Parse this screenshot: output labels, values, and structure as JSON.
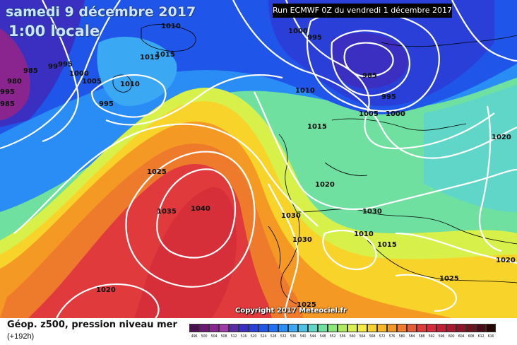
{
  "header": {
    "date_title": "samedi 9 décembre 2017",
    "local_time": "1:00 locale",
    "run_info": "Run ECMWF 0Z du vendredi 1 décembre 2017"
  },
  "footer": {
    "parameter": "Géop. z500, pression niveau mer",
    "lead_time": "(+192h)",
    "copyright": "Copyright 2017 Meteociel.fr"
  },
  "colorscale": {
    "ticks": [
      "496",
      "500",
      "504",
      "508",
      "512",
      "516",
      "520",
      "524",
      "528",
      "532",
      "536",
      "540",
      "544",
      "548",
      "552",
      "556",
      "560",
      "564",
      "568",
      "572",
      "576",
      "580",
      "584",
      "588",
      "592",
      "596",
      "600",
      "604",
      "608",
      "612",
      "616"
    ],
    "colors": [
      "#4a0f4f",
      "#6b1a72",
      "#8a2590",
      "#a03aa8",
      "#5a2aa8",
      "#3a2fc0",
      "#2a3fd8",
      "#1f55e8",
      "#1e6ff2",
      "#2a8cf5",
      "#3aa8f2",
      "#4fc2e8",
      "#5fd6c8",
      "#6fe0a0",
      "#8ae67a",
      "#b0ec5a",
      "#d8f04a",
      "#f4ec3c",
      "#f8d42a",
      "#f8b820",
      "#f49a24",
      "#ee7a2c",
      "#e85a38",
      "#e03a3c",
      "#d62a3a",
      "#c41e36",
      "#a81830",
      "#8c1628",
      "#6e1220",
      "#4a0c16",
      "#280608"
    ]
  },
  "isobar_labels": [
    "980",
    "985",
    "99",
    "995",
    "1000",
    "1005",
    "985",
    "995",
    "1010",
    "1015",
    "1015",
    "1010",
    "995",
    "1000",
    "995",
    "1010",
    "1000",
    "985",
    "995",
    "1005",
    "1000",
    "1015",
    "1020",
    "1025",
    "1035",
    "1040",
    "1030",
    "1030",
    "1020",
    "1010",
    "1015",
    "1030",
    "1020",
    "1025",
    "1020",
    "1025"
  ],
  "colors": {
    "title_text": "#cfe3ff",
    "title_outline": "#143c8c",
    "isobar": "#ffffff"
  }
}
